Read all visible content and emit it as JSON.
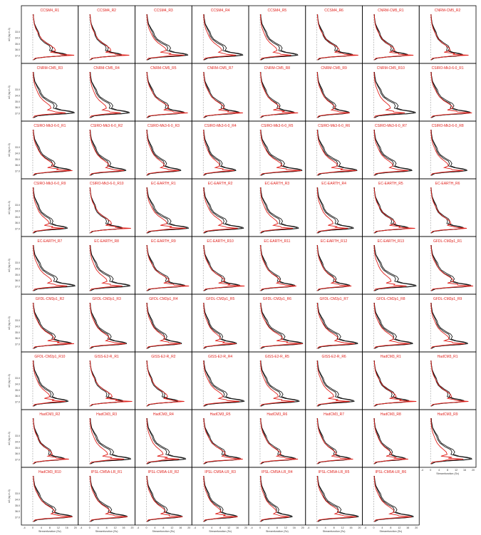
{
  "colors": {
    "observed_line": "#1a1a1a",
    "model_line": "#e0201b",
    "title_text": "#e0201b",
    "zero_line": "#999999",
    "frame": "#000000"
  },
  "chart_data": {
    "type": "line",
    "layout": "9 rows x 8 columns small multiples",
    "xlabel": "Streamfunction (Sv)",
    "ylabel": "σ2 (kg m-3)",
    "xlim": [
      -4,
      20
    ],
    "x_ticks": [
      "-4",
      "0",
      "4",
      "8",
      "12",
      "16",
      "20"
    ],
    "ylim": [
      30.0,
      37.8
    ],
    "y_ticks": [
      "37.0",
      "36.0",
      "35.0",
      "34.0",
      "33.0"
    ],
    "zero_line_x": 0,
    "series_legend": [
      {
        "name": "",
        "style": "black lines (reference, two curves)"
      },
      {
        "name": "",
        "style": "red line (model ensemble member)"
      }
    ],
    "profile": {
      "sigma": [
        30.0,
        30.6,
        31.6,
        32.4,
        33.0,
        33.6,
        34.2,
        34.8,
        35.3,
        35.7,
        36.1,
        36.4,
        36.6,
        36.75,
        36.9,
        37.05,
        37.2,
        37.4,
        37.7
      ],
      "reference_a": [
        0.3,
        0.4,
        0.9,
        2.0,
        3.0,
        3.5,
        4.6,
        7.0,
        9.5,
        10.2,
        9.6,
        12.0,
        15.5,
        17.2,
        17.4,
        14.0,
        7.0,
        2.0,
        0.4
      ],
      "reference_b": [
        0.3,
        0.4,
        0.8,
        1.7,
        2.5,
        3.0,
        4.0,
        6.0,
        8.5,
        9.0,
        8.6,
        11.2,
        14.5,
        16.5,
        16.8,
        13.4,
        6.5,
        1.8,
        0.3
      ],
      "model": [
        0.2,
        0.3,
        0.6,
        1.2,
        2.0,
        2.8,
        3.8,
        5.5,
        7.5,
        9.0,
        9.5,
        8.8,
        9.5,
        13.0,
        16.0,
        12.0,
        4.0,
        1.0,
        0.2
      ]
    },
    "panels": [
      "CCSM4_R1",
      "CCSM4_R2",
      "CCSM4_R3",
      "CCSM4_R4",
      "CCSM4_R5",
      "CCSM4_R6",
      "CNRM-CM5_R1",
      "CNRM-CM5_R2",
      "CNRM-CM5_R3",
      "CNRM-CM5_R4",
      "CNRM-CM5_R5",
      "CNRM-CM5_R7",
      "CNRM-CM5_R8",
      "CNRM-CM5_R9",
      "CNRM-CM5_R10",
      "CSIRO-Mk3-6-0_R1",
      "CSIRO-Mk3-6-0_R1",
      "CSIRO-Mk3-6-0_R2",
      "CSIRO-Mk3-6-0_R3",
      "CSIRO-Mk3-6-0_R4",
      "CSIRO-Mk3-6-0_R5",
      "CSIRO-Mk3-6-0_R6",
      "CSIRO-Mk3-6-0_R7",
      "CSIRO-Mk3-6-0_R8",
      "CSIRO-Mk3-6-0_R9",
      "CSIRO-Mk3-6-0_R10",
      "EC-EARTH_R1",
      "EC-EARTH_R2",
      "EC-EARTH_R3",
      "EC-EARTH_R4",
      "EC-EARTH_R5",
      "EC-EARTH_R6",
      "EC-EARTH_R7",
      "EC-EARTH_R8",
      "EC-EARTH_R9",
      "EC-EARTH_R10",
      "EC-EARTH_R11",
      "EC-EARTH_R12",
      "EC-EARTH_R13",
      "GFDL-CM2p1_R1",
      "GFDL-CM2p1_R2",
      "GFDL-CM2p1_R3",
      "GFDL-CM2p1_R4",
      "GFDL-CM2p1_R5",
      "GFDL-CM2p1_R6",
      "GFDL-CM2p1_R7",
      "GFDL-CM2p1_R8",
      "GFDL-CM2p1_R9",
      "GFDL-CM2p1_R10",
      "GISS-E2-R_R1",
      "GISS-E2-R_R2",
      "GISS-E2-R_R4",
      "GISS-E2-R_R5",
      "GISS-E2-R_R6",
      "HadCM3_R1",
      "HadCM3_R1",
      "HadCM3_R2",
      "HadCM3_R3",
      "HadCM3_R4",
      "HadCM3_R5",
      "HadCM3_R6",
      "HadCM3_R7",
      "HadCM3_R8",
      "HadCM3_R9",
      "HadCM3_R10",
      "IPSL-CM5A-LR_R1",
      "IPSL-CM5A-LR_R2",
      "IPSL-CM5A-LR_R3",
      "IPSL-CM5A-LR_R4",
      "IPSL-CM5A-LR_R5",
      "IPSL-CM5A-LR_R6"
    ]
  }
}
